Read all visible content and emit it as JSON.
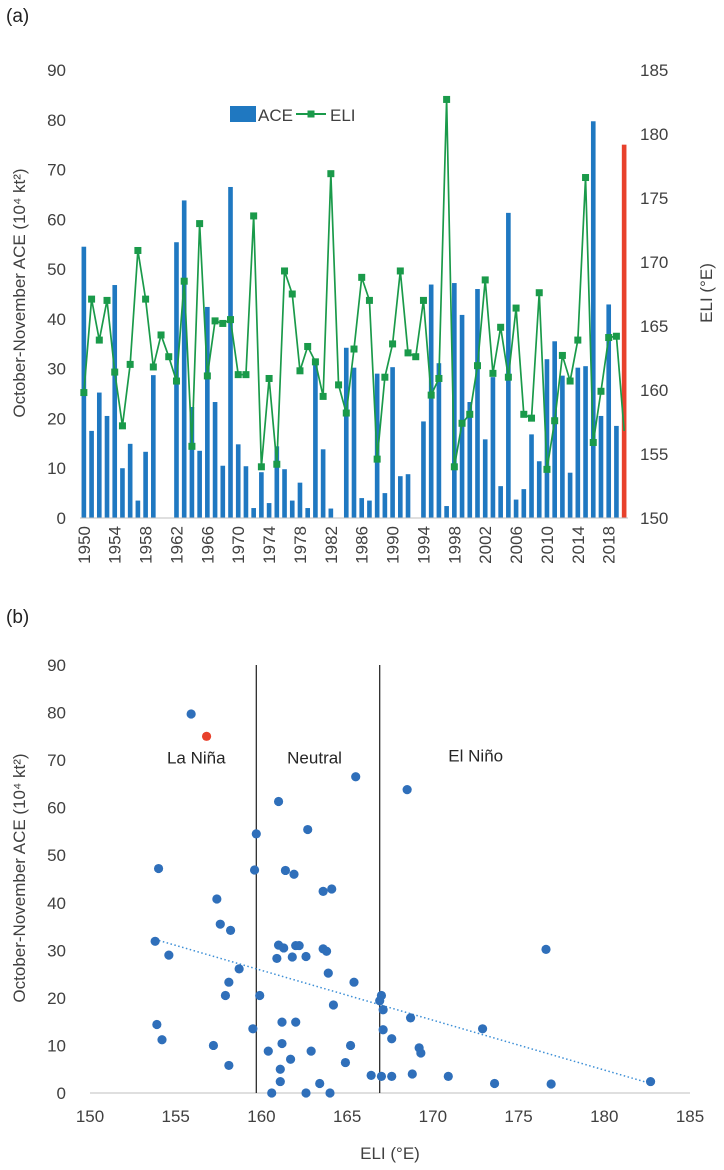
{
  "chart_data": [
    {
      "panel_label": "(a)",
      "type": "bar+line",
      "ylabel_left": "October-November ACE (10⁴ kt²)",
      "ylabel_right": "ELI (°E)",
      "ylim_left": [
        0,
        90
      ],
      "ylim_right": [
        150,
        185
      ],
      "yticks_left": [
        "0",
        "10",
        "20",
        "30",
        "40",
        "50",
        "60",
        "70",
        "80",
        "90"
      ],
      "yticks_right": [
        "150",
        "155",
        "160",
        "165",
        "170",
        "175",
        "180",
        "185"
      ],
      "xticks": [
        "1950",
        "1954",
        "1958",
        "1962",
        "1966",
        "1970",
        "1974",
        "1978",
        "1982",
        "1986",
        "1990",
        "1994",
        "1998",
        "2002",
        "2006",
        "2010",
        "2014",
        "2018"
      ],
      "legend": [
        "ACE",
        "ELI"
      ],
      "legend_position": "top-left",
      "colors": {
        "ace": "#1f78c1",
        "eli": "#1a9a4a",
        "highlight": "#e8412c"
      },
      "years": [
        1950,
        1951,
        1952,
        1953,
        1954,
        1955,
        1956,
        1957,
        1958,
        1959,
        1960,
        1961,
        1962,
        1963,
        1964,
        1965,
        1966,
        1967,
        1968,
        1969,
        1970,
        1971,
        1972,
        1973,
        1974,
        1975,
        1976,
        1977,
        1978,
        1979,
        1980,
        1981,
        1982,
        1983,
        1984,
        1985,
        1986,
        1987,
        1988,
        1989,
        1990,
        1991,
        1992,
        1993,
        1994,
        1995,
        1996,
        1997,
        1998,
        1999,
        2000,
        2001,
        2002,
        2003,
        2004,
        2005,
        2006,
        2007,
        2008,
        2009,
        2010,
        2011,
        2012,
        2013,
        2014,
        2015,
        2016,
        2017,
        2018,
        2019,
        2020
      ],
      "ace": [
        54.5,
        17.5,
        25.2,
        20.5,
        46.8,
        10.0,
        14.9,
        3.5,
        13.3,
        28.7,
        0,
        0,
        55.4,
        63.8,
        22.3,
        13.5,
        42.4,
        23.3,
        10.5,
        66.5,
        14.8,
        10.4,
        2.0,
        9.2,
        3.0,
        14.4,
        9.8,
        3.5,
        7.1,
        2.0,
        31.0,
        13.8,
        1.9,
        0,
        34.2,
        30.2,
        4.0,
        3.5,
        29.0,
        5.0,
        30.3,
        8.4,
        8.8,
        0,
        19.4,
        46.9,
        31.1,
        2.4,
        47.2,
        40.8,
        23.3,
        46.0,
        15.8,
        28.3,
        6.4,
        61.3,
        3.7,
        5.8,
        16.8,
        11.4,
        31.9,
        35.5,
        28.6,
        9.1,
        30.2,
        30.5,
        79.7,
        20.5,
        42.9,
        18.5,
        75.0
      ],
      "eli": [
        159.8,
        167.1,
        163.9,
        167.0,
        161.4,
        157.2,
        162.0,
        170.9,
        167.1,
        161.8,
        164.3,
        162.6,
        160.7,
        168.5,
        155.6,
        173.0,
        161.1,
        165.4,
        165.2,
        165.5,
        161.2,
        161.2,
        173.6,
        154.0,
        160.9,
        154.2,
        169.3,
        167.5,
        161.5,
        163.4,
        162.2,
        159.5,
        176.9,
        160.4,
        158.2,
        163.2,
        168.8,
        167.0,
        154.6,
        161.0,
        163.6,
        169.3,
        162.9,
        162.6,
        167.0,
        159.6,
        160.9,
        182.7,
        154.0,
        157.4,
        158.1,
        161.9,
        168.6,
        161.3,
        164.9,
        161.0,
        166.4,
        158.1,
        157.8,
        167.6,
        153.8,
        157.6,
        162.7,
        160.7,
        163.9,
        176.6,
        155.9,
        159.9,
        164.1,
        164.2,
        156.8
      ],
      "highlight_year": 2020
    },
    {
      "panel_label": "(b)",
      "type": "scatter",
      "xlabel": "ELI (°E)",
      "ylabel": "October-November ACE (10⁴ kt²)",
      "xlim": [
        150,
        185
      ],
      "ylim": [
        0,
        90
      ],
      "xticks": [
        "150",
        "155",
        "160",
        "165",
        "170",
        "175",
        "180",
        "185"
      ],
      "yticks": [
        "0",
        "10",
        "20",
        "30",
        "40",
        "50",
        "60",
        "70",
        "80",
        "90"
      ],
      "regions": [
        {
          "label": "La Niña",
          "x_center": 156.2,
          "y": 70.5
        },
        {
          "label": "Neutral",
          "x_center": 163.1,
          "y": 70.5
        },
        {
          "label": "El Niño",
          "x_center": 172.5,
          "y": 71.0
        }
      ],
      "region_boundaries": [
        159.7,
        166.9
      ],
      "trendline": {
        "style": "dotted",
        "x": [
          153.8,
          182.7
        ],
        "y": [
          32.3,
          2.0
        ]
      },
      "colors": {
        "points": "#2f6fba",
        "highlight": "#e8412c",
        "trend": "#3d8fd6"
      },
      "points": [
        [
          155.9,
          79.7
        ],
        [
          165.5,
          66.5
        ],
        [
          168.5,
          63.8
        ],
        [
          161.0,
          61.3
        ],
        [
          162.7,
          55.4
        ],
        [
          159.7,
          54.5
        ],
        [
          154.0,
          47.2
        ],
        [
          159.6,
          46.9
        ],
        [
          161.4,
          46.8
        ],
        [
          161.9,
          46.0
        ],
        [
          164.1,
          42.9
        ],
        [
          163.6,
          42.4
        ],
        [
          157.4,
          40.8
        ],
        [
          157.6,
          35.5
        ],
        [
          158.2,
          34.2
        ],
        [
          153.8,
          31.9
        ],
        [
          161.0,
          31.1
        ],
        [
          162.0,
          31.0
        ],
        [
          162.2,
          31.0
        ],
        [
          161.3,
          30.5
        ],
        [
          163.6,
          30.3
        ],
        [
          176.6,
          30.2
        ],
        [
          163.8,
          29.8
        ],
        [
          154.6,
          29.0
        ],
        [
          162.6,
          28.7
        ],
        [
          161.8,
          28.6
        ],
        [
          160.9,
          28.3
        ],
        [
          158.7,
          26.1
        ],
        [
          163.9,
          25.2
        ],
        [
          165.4,
          23.3
        ],
        [
          158.1,
          23.3
        ],
        [
          157.9,
          20.5
        ],
        [
          159.9,
          20.5
        ],
        [
          167.0,
          20.5
        ],
        [
          166.9,
          19.4
        ],
        [
          164.2,
          18.5
        ],
        [
          167.1,
          17.5
        ],
        [
          168.7,
          15.8
        ],
        [
          161.2,
          14.9
        ],
        [
          162.0,
          14.9
        ],
        [
          153.9,
          14.4
        ],
        [
          159.5,
          13.5
        ],
        [
          167.1,
          13.3
        ],
        [
          172.9,
          13.5
        ],
        [
          154.2,
          11.2
        ],
        [
          167.6,
          11.4
        ],
        [
          157.2,
          10.0
        ],
        [
          165.2,
          10.0
        ],
        [
          161.2,
          10.4
        ],
        [
          169.2,
          9.5
        ],
        [
          169.3,
          8.4
        ],
        [
          162.9,
          8.8
        ],
        [
          160.4,
          8.8
        ],
        [
          161.7,
          7.1
        ],
        [
          158.1,
          5.8
        ],
        [
          164.9,
          6.4
        ],
        [
          161.1,
          5.0
        ],
        [
          168.8,
          4.0
        ],
        [
          166.4,
          3.7
        ],
        [
          167.6,
          3.5
        ],
        [
          167.0,
          3.5
        ],
        [
          170.9,
          3.5
        ],
        [
          161.1,
          2.4
        ],
        [
          163.4,
          2.0
        ],
        [
          173.6,
          2.0
        ],
        [
          176.9,
          1.9
        ],
        [
          182.7,
          2.4
        ],
        [
          164.0,
          0.0
        ],
        [
          160.6,
          0.0
        ],
        [
          162.6,
          0.0
        ]
      ],
      "highlight_point": [
        156.8,
        75.0
      ]
    }
  ]
}
